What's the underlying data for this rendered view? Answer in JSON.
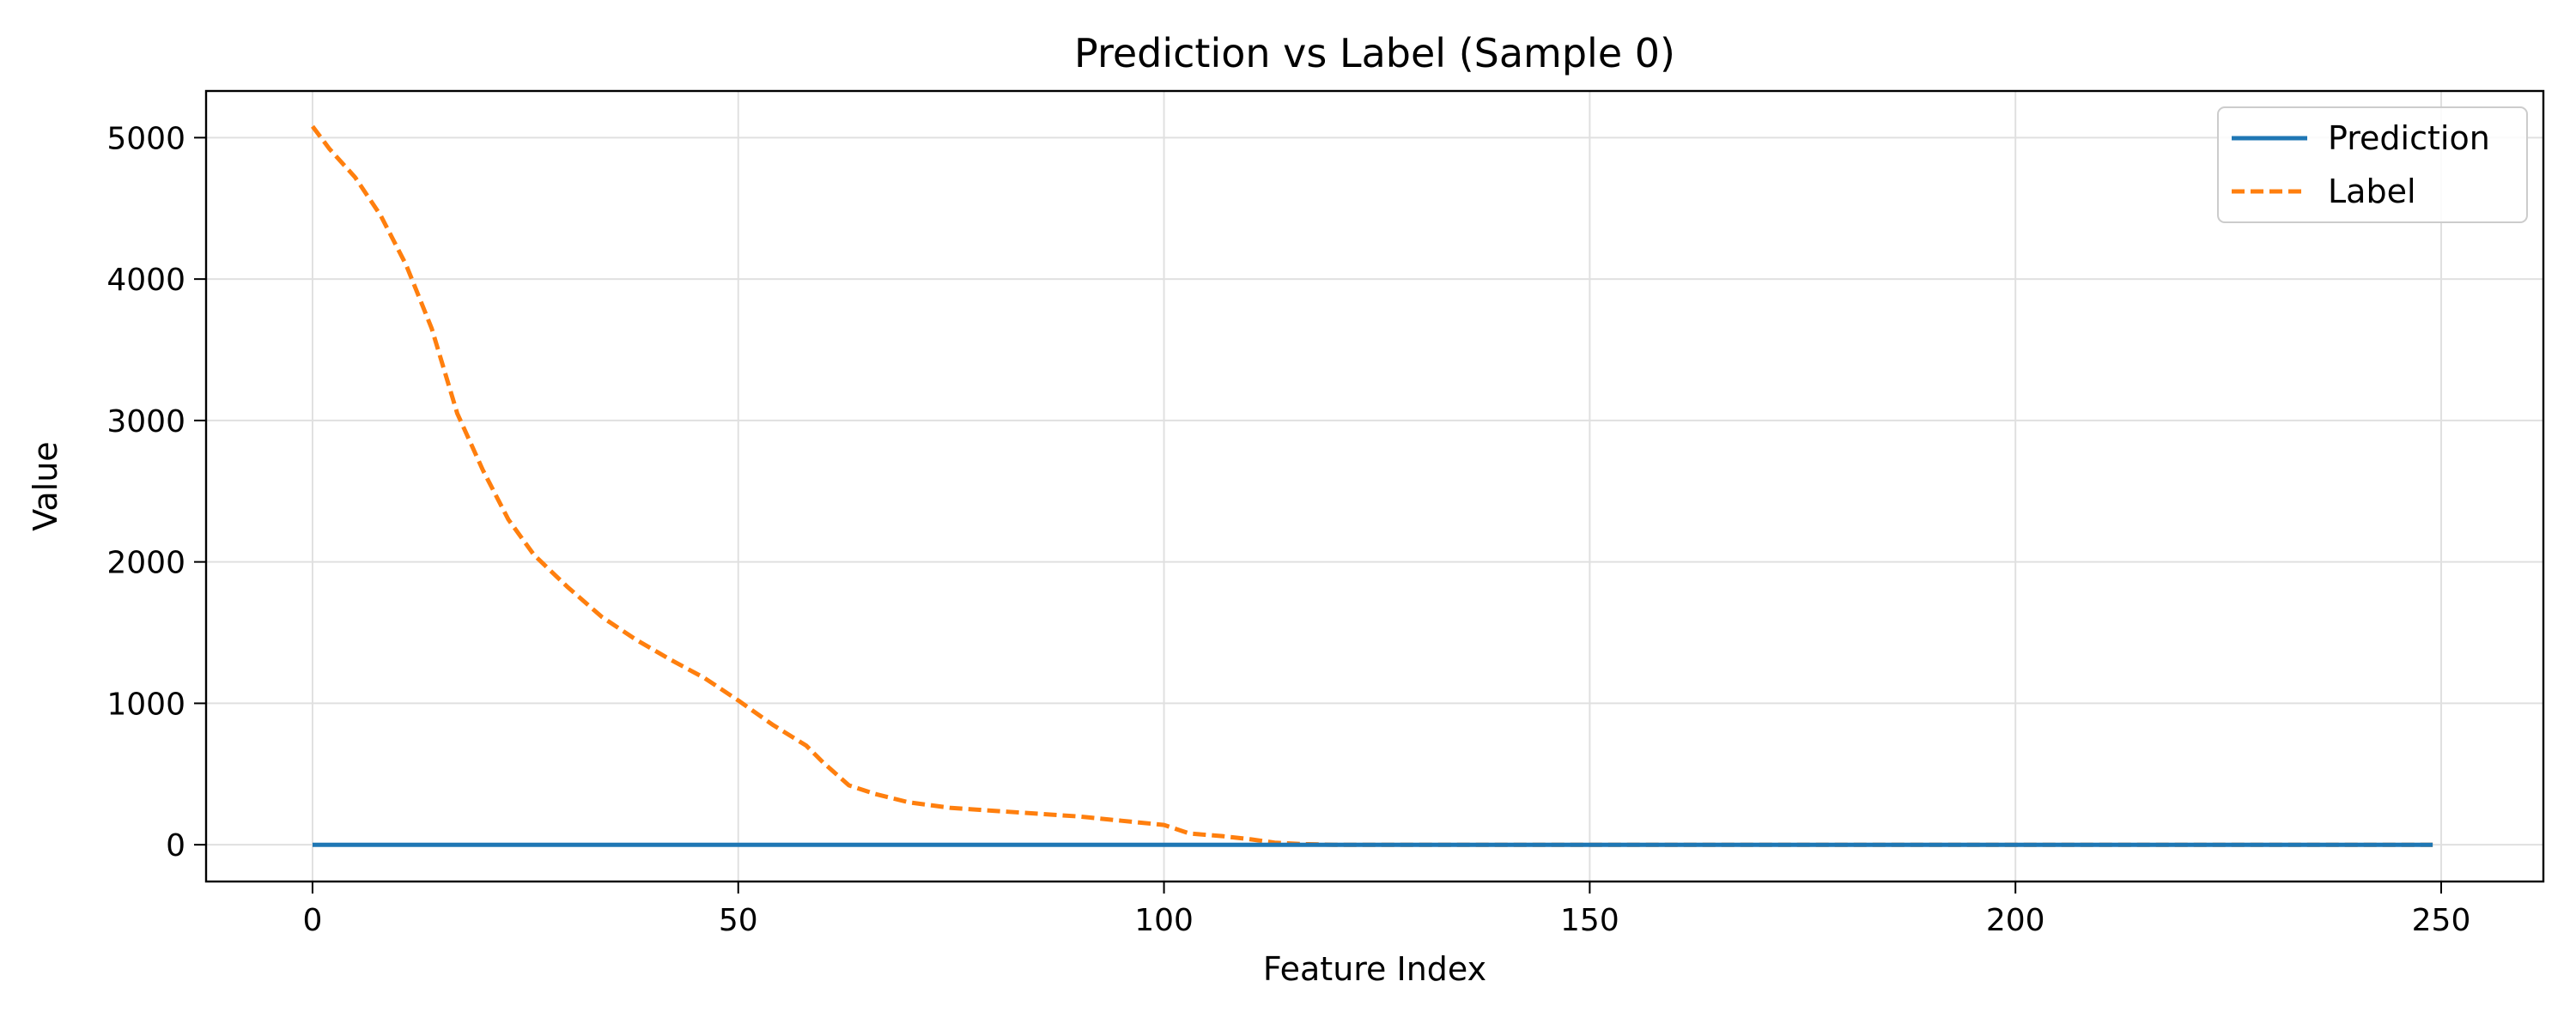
{
  "chart_data": {
    "type": "line",
    "title": "Prediction vs Label (Sample 0)",
    "xlabel": "Feature Index",
    "ylabel": "Value",
    "xlim": [
      -12.5,
      262
    ],
    "ylim": [
      -260,
      5330
    ],
    "xticks": [
      0,
      50,
      100,
      150,
      200,
      250
    ],
    "yticks": [
      0,
      1000,
      2000,
      3000,
      4000,
      5000
    ],
    "grid": true,
    "legend_position": "top-right",
    "series": [
      {
        "name": "Prediction",
        "color": "#1f77b4",
        "style": "solid",
        "x": [
          0,
          249
        ],
        "y": [
          0,
          0
        ]
      },
      {
        "name": "Label",
        "color": "#ff7f0e",
        "style": "dashed",
        "x": [
          0,
          2,
          5,
          8,
          11,
          14,
          17,
          20,
          23,
          26,
          30,
          34,
          38,
          42,
          46,
          50,
          54,
          58,
          60,
          63,
          66,
          70,
          75,
          80,
          85,
          90,
          95,
          100,
          103,
          107,
          110,
          113,
          116,
          120,
          130,
          150,
          200,
          249
        ],
        "y": [
          5080,
          4920,
          4720,
          4450,
          4100,
          3650,
          3050,
          2650,
          2300,
          2050,
          1820,
          1610,
          1450,
          1310,
          1180,
          1020,
          850,
          700,
          580,
          420,
          360,
          300,
          260,
          240,
          220,
          200,
          170,
          140,
          80,
          60,
          40,
          15,
          5,
          0,
          0,
          0,
          0,
          0
        ]
      }
    ]
  }
}
